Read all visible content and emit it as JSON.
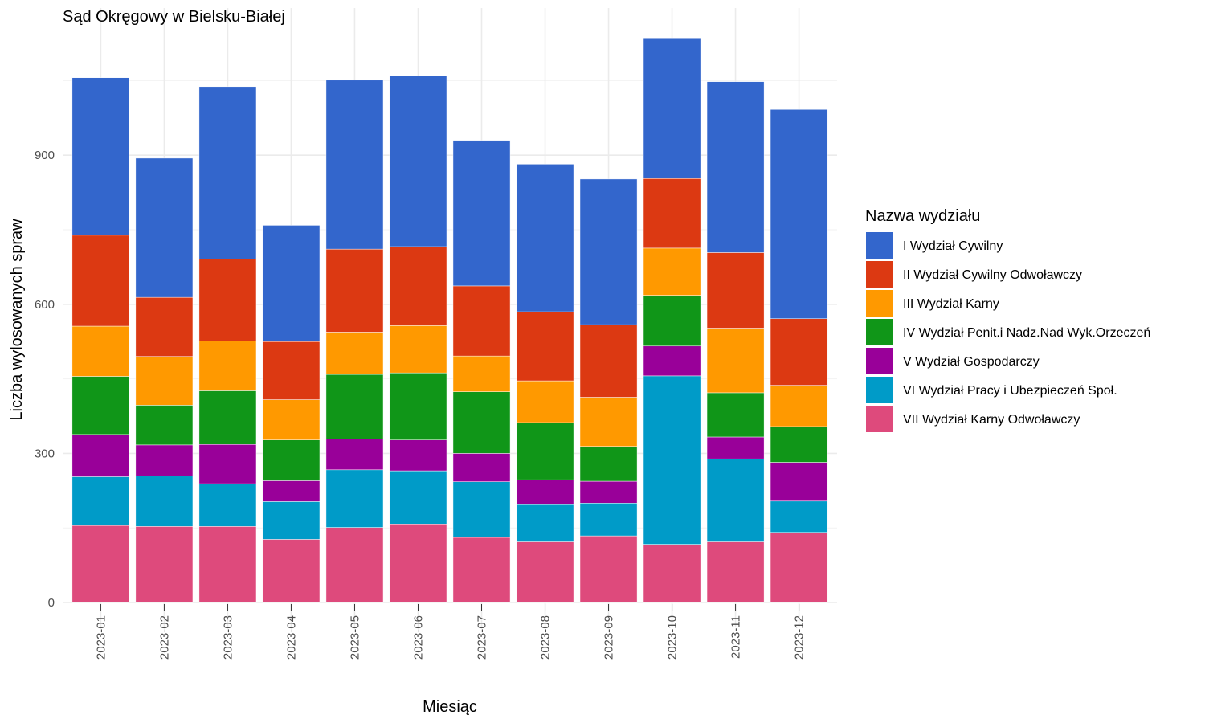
{
  "chart_data": {
    "type": "bar",
    "stacked": true,
    "title": "Sąd Okręgowy w Bielsku-Białej",
    "xlabel": "Miesiąc",
    "ylabel": "Liczba wylosowanych spraw",
    "ylim": [
      0,
      1150
    ],
    "yticks": [
      0,
      300,
      600,
      900
    ],
    "grid": true,
    "legend_title": "Nazwa wydziału",
    "legend_position": "right",
    "categories": [
      "2023-01",
      "2023-02",
      "2023-03",
      "2023-04",
      "2023-05",
      "2023-06",
      "2023-07",
      "2023-08",
      "2023-09",
      "2023-10",
      "2023-11",
      "2023-12"
    ],
    "series": [
      {
        "name": "VII Wydział Karny Odwoławczy",
        "color": "#de4a7c",
        "values": [
          155,
          153,
          153,
          127,
          151,
          158,
          131,
          122,
          134,
          117,
          122,
          141
        ]
      },
      {
        "name": "VI Wydział Pracy i Ubezpieczeń Społ.",
        "color": "#009bc8",
        "values": [
          98,
          102,
          86,
          76,
          116,
          107,
          112,
          75,
          66,
          339,
          167,
          63
        ]
      },
      {
        "name": "V Wydział Gospodarczy",
        "color": "#990099",
        "values": [
          85,
          62,
          79,
          42,
          62,
          62,
          57,
          50,
          44,
          60,
          44,
          78
        ]
      },
      {
        "name": "IV Wydział Penit.i Nadz.Nad Wyk.Orzeczeń",
        "color": "#109618",
        "values": [
          117,
          80,
          108,
          82,
          130,
          135,
          124,
          115,
          70,
          102,
          89,
          72
        ]
      },
      {
        "name": "III Wydział Karny",
        "color": "#ff9900",
        "values": [
          101,
          98,
          100,
          81,
          85,
          95,
          72,
          84,
          99,
          95,
          130,
          83
        ]
      },
      {
        "name": "II Wydział Cywilny Odwoławczy",
        "color": "#dc3912",
        "values": [
          183,
          119,
          165,
          117,
          167,
          159,
          141,
          139,
          146,
          140,
          152,
          134
        ]
      },
      {
        "name": "I Wydział Cywilny",
        "color": "#3366cc",
        "values": [
          317,
          280,
          347,
          234,
          340,
          344,
          293,
          297,
          293,
          283,
          344,
          421
        ]
      }
    ]
  }
}
